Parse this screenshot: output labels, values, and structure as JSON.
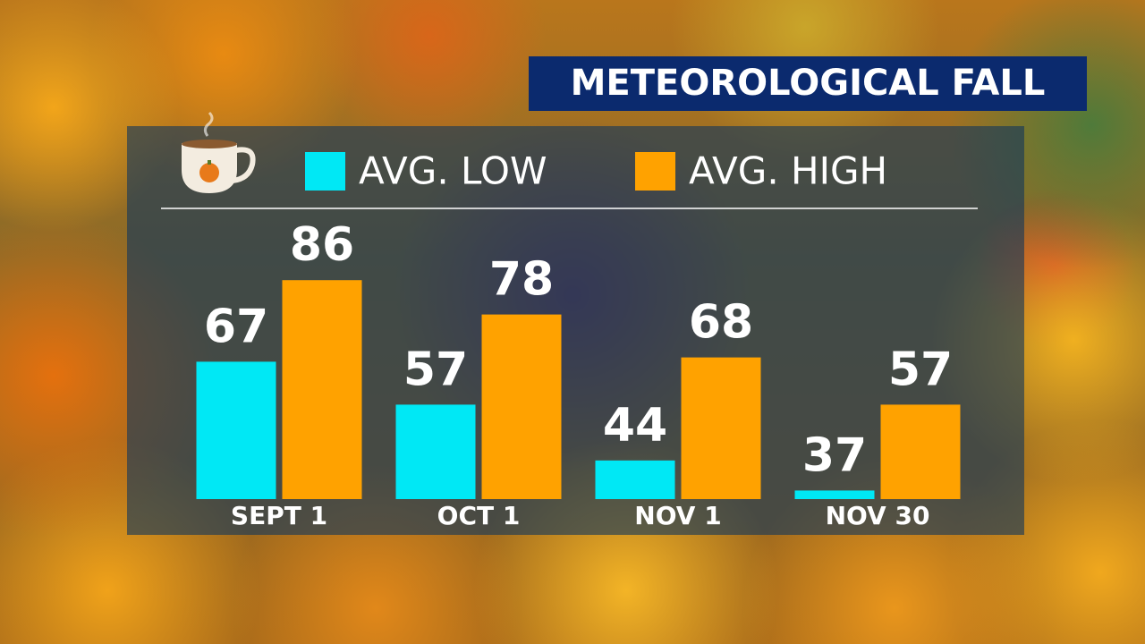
{
  "chart_data": {
    "type": "bar",
    "title": "METEOROLOGICAL FALL",
    "categories": [
      "SEPT 1",
      "OCT 1",
      "NOV 1",
      "NOV 30"
    ],
    "series": [
      {
        "name": "AVG. LOW",
        "color": "#00e8f5",
        "values": [
          67,
          57,
          44,
          37
        ]
      },
      {
        "name": "AVG. HIGH",
        "color": "#ffa200",
        "values": [
          86,
          78,
          68,
          57
        ]
      }
    ],
    "ylim": [
      35,
      90
    ]
  }
}
